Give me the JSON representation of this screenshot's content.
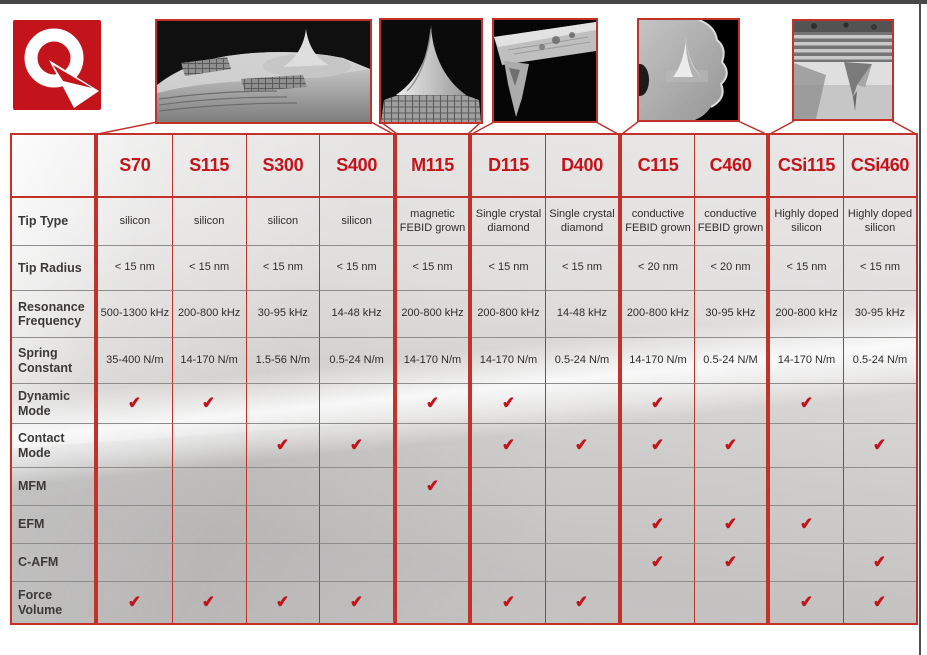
{
  "accent": {
    "red": "#c3141b",
    "border_red": "#c2322b",
    "check_red": "#bf1217"
  },
  "logo": {
    "letter": "Q"
  },
  "sem_images": [
    {
      "name": "sem-photo-s-series-cantilever"
    },
    {
      "name": "sem-photo-m115-tip"
    },
    {
      "name": "sem-photo-d-series-diamond-tip"
    },
    {
      "name": "sem-photo-c-series-conductive-tip"
    },
    {
      "name": "sem-photo-csi-series-doped-tip"
    }
  ],
  "table": {
    "columns": [
      "S70",
      "S115",
      "S300",
      "S400",
      "M115",
      "D115",
      "D400",
      "C115",
      "C460",
      "CSi115",
      "CSi460"
    ],
    "check_glyph": "✔",
    "rows": [
      {
        "key": "tip-type",
        "label": "Tip Type",
        "type": "text",
        "values": [
          "silicon",
          "silicon",
          "silicon",
          "silicon",
          "magnetic FEBID grown",
          "Single crystal diamond",
          "Single crystal diamond",
          "conductive FEBID grown",
          "conductive FEBID grown",
          "Highly doped silicon",
          "Highly doped silicon"
        ]
      },
      {
        "key": "tip-radius",
        "label": "Tip Radius",
        "type": "text",
        "values": [
          "< 15 nm",
          "< 15 nm",
          "< 15 nm",
          "< 15 nm",
          "< 15 nm",
          "< 15 nm",
          "< 15 nm",
          "< 20 nm",
          "< 20 nm",
          "< 15 nm",
          "< 15 nm"
        ]
      },
      {
        "key": "resonance-frequency",
        "label": "Resonance Frequency",
        "type": "text",
        "values": [
          "500-1300 kHz",
          "200-800 kHz",
          "30-95 kHz",
          "14-48 kHz",
          "200-800 kHz",
          "200-800 kHz",
          "14-48 kHz",
          "200-800 kHz",
          "30-95 kHz",
          "200-800 kHz",
          "30-95 kHz"
        ]
      },
      {
        "key": "spring-constant",
        "label": "Spring Constant",
        "type": "text",
        "values": [
          "35-400 N/m",
          "14-170 N/m",
          "1.5-56 N/m",
          "0.5-24 N/m",
          "14-170 N/m",
          "14-170 N/m",
          "0.5-24 N/m",
          "14-170 N/m",
          "0.5-24 N/M",
          "14-170 N/m",
          "0.5-24 N/m"
        ]
      },
      {
        "key": "dynamic-mode",
        "label": "Dynamic Mode",
        "type": "check",
        "values": [
          1,
          1,
          0,
          0,
          1,
          1,
          0,
          1,
          0,
          1,
          0
        ]
      },
      {
        "key": "contact-mode",
        "label": "Contact Mode",
        "type": "check",
        "values": [
          0,
          0,
          1,
          1,
          0,
          1,
          1,
          1,
          1,
          0,
          1
        ]
      },
      {
        "key": "mfm",
        "label": "MFM",
        "type": "check",
        "values": [
          0,
          0,
          0,
          0,
          1,
          0,
          0,
          0,
          0,
          0,
          0
        ]
      },
      {
        "key": "efm",
        "label": "EFM",
        "type": "check",
        "values": [
          0,
          0,
          0,
          0,
          0,
          0,
          0,
          1,
          1,
          1,
          0
        ]
      },
      {
        "key": "c-afm",
        "label": "C-AFM",
        "type": "check",
        "values": [
          0,
          0,
          0,
          0,
          0,
          0,
          0,
          1,
          1,
          0,
          1
        ]
      },
      {
        "key": "force-volume",
        "label": "Force Volume",
        "type": "check",
        "values": [
          1,
          1,
          1,
          1,
          0,
          1,
          1,
          0,
          0,
          1,
          1
        ]
      }
    ]
  }
}
